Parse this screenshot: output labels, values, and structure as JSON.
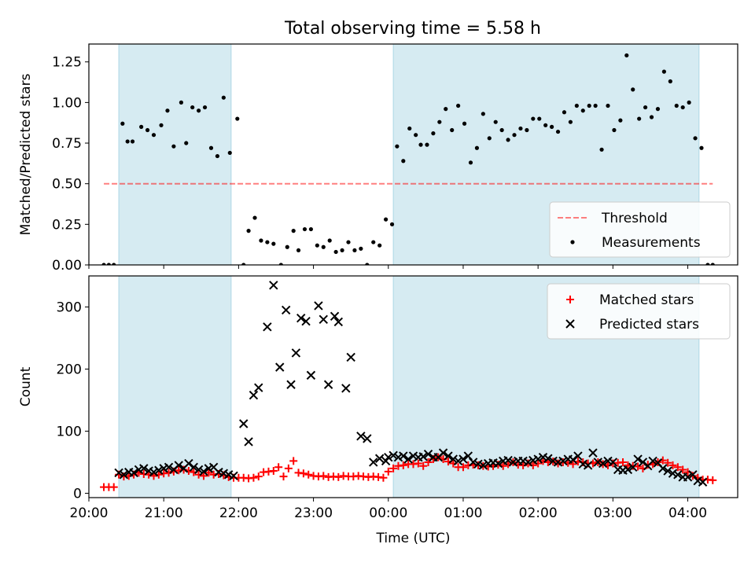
{
  "title": "Total observing time = 5.58 h",
  "colors": {
    "band": "#add8e6",
    "threshold": "#ff0000",
    "measurements": "#000000",
    "matched": "#ff0000",
    "predicted": "#000000"
  },
  "chart_data": [
    {
      "type": "scatter",
      "ylabel": "Matched/Predicted stars",
      "ylim": [
        0,
        1.36
      ],
      "yticks": [
        0.0,
        0.25,
        0.5,
        0.75,
        1.0,
        1.25
      ],
      "ytick_labels": [
        "0.00",
        "0.25",
        "0.50",
        "0.75",
        "1.00",
        "1.25"
      ],
      "xlim": [
        "20:00",
        "04:40"
      ],
      "shaded_intervals": [
        [
          "20:24",
          "21:54"
        ],
        [
          "00:04",
          "04:09"
        ]
      ],
      "legend": {
        "placement": "lower-right",
        "entries": [
          "Threshold",
          "Measurements"
        ]
      },
      "threshold": {
        "name": "Threshold",
        "value": 0.5,
        "x_range": [
          "20:12",
          "04:20"
        ]
      },
      "series": [
        {
          "name": "Measurements",
          "x": [
            "20:12",
            "20:16",
            "20:20",
            "20:27",
            "20:31",
            "20:35",
            "20:42",
            "20:47",
            "20:52",
            "20:58",
            "21:03",
            "21:08",
            "21:14",
            "21:18",
            "21:23",
            "21:28",
            "21:33",
            "21:38",
            "21:43",
            "21:48",
            "21:53",
            "21:59",
            "22:04",
            "22:08",
            "22:13",
            "22:18",
            "22:23",
            "22:28",
            "22:34",
            "22:39",
            "22:44",
            "22:48",
            "22:53",
            "22:58",
            "23:03",
            "23:08",
            "23:13",
            "23:18",
            "23:23",
            "23:28",
            "23:33",
            "23:38",
            "23:43",
            "23:48",
            "23:53",
            "23:58",
            "00:03",
            "00:07",
            "00:12",
            "00:17",
            "00:22",
            "00:26",
            "00:31",
            "00:36",
            "00:41",
            "00:46",
            "00:51",
            "00:56",
            "01:01",
            "01:06",
            "01:11",
            "01:16",
            "01:21",
            "01:26",
            "01:31",
            "01:36",
            "01:41",
            "01:46",
            "01:51",
            "01:56",
            "02:01",
            "02:06",
            "02:11",
            "02:16",
            "02:21",
            "02:26",
            "02:31",
            "02:36",
            "02:41",
            "02:46",
            "02:51",
            "02:56",
            "03:01",
            "03:06",
            "03:11",
            "03:16",
            "03:21",
            "03:26",
            "03:31",
            "03:36",
            "03:41",
            "03:46",
            "03:51",
            "03:56",
            "04:01",
            "04:06",
            "04:11",
            "04:16",
            "04:20"
          ],
          "y": [
            0.0,
            0.0,
            0.0,
            0.87,
            0.76,
            0.76,
            0.85,
            0.83,
            0.8,
            0.86,
            0.95,
            0.73,
            1.0,
            0.75,
            0.97,
            0.95,
            0.97,
            0.72,
            0.67,
            1.03,
            0.69,
            0.9,
            0.0,
            0.21,
            0.29,
            0.15,
            0.14,
            0.13,
            0.0,
            0.11,
            0.21,
            0.09,
            0.22,
            0.22,
            0.12,
            0.11,
            0.15,
            0.08,
            0.09,
            0.14,
            0.09,
            0.1,
            0.0,
            0.14,
            0.12,
            0.28,
            0.25,
            0.73,
            0.64,
            0.84,
            0.8,
            0.74,
            0.74,
            0.81,
            0.88,
            0.96,
            0.83,
            0.98,
            0.87,
            0.63,
            0.72,
            0.93,
            0.78,
            0.88,
            0.83,
            0.77,
            0.8,
            0.84,
            0.83,
            0.9,
            0.9,
            0.86,
            0.85,
            0.82,
            0.94,
            0.88,
            0.98,
            0.95,
            0.98,
            0.98,
            0.71,
            0.98,
            0.83,
            0.89,
            1.29,
            1.08,
            0.9,
            0.97,
            0.91,
            0.96,
            1.19,
            1.13,
            0.98,
            0.97,
            1.0,
            0.78,
            0.72,
            0.0,
            0.0
          ]
        }
      ]
    },
    {
      "type": "scatter",
      "xlabel": "Time (UTC)",
      "ylabel": "Count",
      "ylim": [
        -7,
        350
      ],
      "yticks": [
        0,
        100,
        200,
        300
      ],
      "ytick_labels": [
        "0",
        "100",
        "200",
        "300"
      ],
      "xlim": [
        "20:00",
        "04:40"
      ],
      "xticks": [
        "20:00",
        "21:00",
        "22:00",
        "23:00",
        "00:00",
        "01:00",
        "02:00",
        "03:00",
        "04:00"
      ],
      "shaded_intervals": [
        [
          "20:24",
          "21:54"
        ],
        [
          "00:04",
          "04:09"
        ]
      ],
      "legend": {
        "placement": "upper-right",
        "entries": [
          "Matched stars",
          "Predicted stars"
        ]
      },
      "series": [
        {
          "name": "Matched stars",
          "marker": "plus",
          "x": [
            "20:12",
            "20:16",
            "20:20",
            "20:24",
            "20:28",
            "20:32",
            "20:36",
            "20:40",
            "20:44",
            "20:48",
            "20:52",
            "20:56",
            "21:00",
            "21:04",
            "21:08",
            "21:12",
            "21:16",
            "21:20",
            "21:24",
            "21:28",
            "21:32",
            "21:36",
            "21:40",
            "21:44",
            "21:48",
            "21:52",
            "21:56",
            "22:00",
            "22:04",
            "22:08",
            "22:12",
            "22:16",
            "22:20",
            "22:24",
            "22:28",
            "22:32",
            "22:36",
            "22:40",
            "22:44",
            "22:48",
            "22:52",
            "22:56",
            "23:00",
            "23:04",
            "23:08",
            "23:12",
            "23:16",
            "23:20",
            "23:24",
            "23:28",
            "23:32",
            "23:36",
            "23:40",
            "23:44",
            "23:48",
            "23:52",
            "23:56",
            "00:00",
            "00:04",
            "00:08",
            "00:12",
            "00:16",
            "00:20",
            "00:24",
            "00:28",
            "00:32",
            "00:36",
            "00:40",
            "00:44",
            "00:48",
            "00:52",
            "00:56",
            "01:00",
            "01:04",
            "01:08",
            "01:12",
            "01:16",
            "01:20",
            "01:24",
            "01:28",
            "01:32",
            "01:36",
            "01:40",
            "01:44",
            "01:48",
            "01:52",
            "01:56",
            "02:00",
            "02:04",
            "02:08",
            "02:12",
            "02:16",
            "02:20",
            "02:24",
            "02:28",
            "02:32",
            "02:36",
            "02:40",
            "02:44",
            "02:48",
            "02:52",
            "02:56",
            "03:00",
            "03:04",
            "03:08",
            "03:12",
            "03:16",
            "03:20",
            "03:24",
            "03:28",
            "03:32",
            "03:36",
            "03:40",
            "03:44",
            "03:48",
            "03:52",
            "03:56",
            "04:00",
            "04:04",
            "04:08",
            "04:12",
            "04:16",
            "04:20"
          ],
          "y": [
            10,
            10,
            10,
            30,
            27,
            28,
            30,
            33,
            31,
            30,
            28,
            30,
            32,
            33,
            35,
            37,
            38,
            36,
            34,
            30,
            28,
            33,
            30,
            31,
            29,
            26,
            25,
            25,
            25,
            24,
            25,
            27,
            34,
            35,
            36,
            42,
            27,
            40,
            52,
            33,
            32,
            30,
            28,
            27,
            28,
            26,
            27,
            26,
            28,
            27,
            27,
            28,
            27,
            26,
            27,
            26,
            25,
            35,
            40,
            44,
            45,
            47,
            47,
            48,
            44,
            50,
            55,
            58,
            55,
            51,
            48,
            42,
            42,
            45,
            46,
            45,
            44,
            43,
            44,
            46,
            44,
            47,
            50,
            46,
            45,
            48,
            45,
            48,
            52,
            50,
            51,
            48,
            50,
            49,
            47,
            51,
            50,
            48,
            48,
            50,
            47,
            45,
            48,
            49,
            50,
            45,
            44,
            43,
            40,
            46,
            47,
            50,
            53,
            49,
            45,
            42,
            38,
            34,
            28,
            25,
            22,
            22,
            21
          ]
        },
        {
          "name": "Predicted stars",
          "marker": "x",
          "x": [
            "20:24",
            "20:28",
            "20:32",
            "20:36",
            "20:40",
            "20:44",
            "20:48",
            "20:52",
            "20:56",
            "21:00",
            "21:04",
            "21:08",
            "21:12",
            "21:16",
            "21:20",
            "21:24",
            "21:28",
            "21:32",
            "21:36",
            "21:40",
            "21:44",
            "21:48",
            "21:52",
            "21:56",
            "22:04",
            "22:08",
            "22:12",
            "22:16",
            "22:23",
            "22:28",
            "22:33",
            "22:38",
            "22:42",
            "22:46",
            "22:50",
            "22:54",
            "22:58",
            "23:04",
            "23:08",
            "23:12",
            "23:17",
            "23:20",
            "23:26",
            "23:30",
            "23:38",
            "23:43",
            "23:48",
            "23:53",
            "23:58",
            "00:00",
            "00:04",
            "00:08",
            "00:12",
            "00:16",
            "00:20",
            "00:24",
            "00:28",
            "00:32",
            "00:36",
            "00:40",
            "00:44",
            "00:48",
            "00:52",
            "00:56",
            "01:00",
            "01:04",
            "01:08",
            "01:12",
            "01:16",
            "01:20",
            "01:24",
            "01:28",
            "01:32",
            "01:36",
            "01:40",
            "01:44",
            "01:48",
            "01:52",
            "01:56",
            "02:00",
            "02:04",
            "02:08",
            "02:12",
            "02:16",
            "02:20",
            "02:24",
            "02:28",
            "02:32",
            "02:36",
            "02:40",
            "02:44",
            "02:48",
            "02:52",
            "02:56",
            "03:00",
            "03:04",
            "03:08",
            "03:12",
            "03:16",
            "03:20",
            "03:24",
            "03:28",
            "03:32",
            "03:36",
            "03:40",
            "03:44",
            "03:48",
            "03:52",
            "03:56",
            "04:00",
            "04:04",
            "04:08",
            "04:12"
          ],
          "y": [
            33,
            30,
            34,
            33,
            38,
            40,
            36,
            34,
            37,
            40,
            42,
            38,
            45,
            40,
            48,
            42,
            38,
            35,
            40,
            42,
            34,
            32,
            30,
            28,
            112,
            83,
            158,
            170,
            268,
            335,
            203,
            295,
            175,
            226,
            282,
            277,
            190,
            302,
            280,
            175,
            285,
            276,
            169,
            219,
            92,
            88,
            50,
            56,
            52,
            58,
            61,
            58,
            60,
            55,
            60,
            58,
            59,
            63,
            58,
            58,
            65,
            60,
            55,
            52,
            55,
            60,
            50,
            47,
            45,
            48,
            49,
            48,
            52,
            53,
            50,
            52,
            52,
            50,
            53,
            55,
            58,
            56,
            52,
            50,
            52,
            55,
            54,
            60,
            47,
            45,
            65,
            50,
            48,
            52,
            50,
            38,
            37,
            38,
            42,
            55,
            50,
            44,
            52,
            49,
            40,
            36,
            32,
            30,
            26,
            26,
            30,
            20,
            18
          ]
        }
      ]
    }
  ]
}
